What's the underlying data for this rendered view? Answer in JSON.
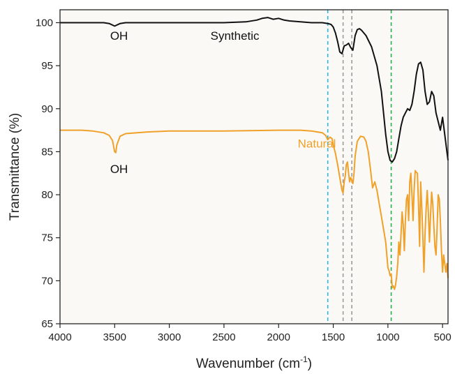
{
  "chart_data": {
    "type": "line",
    "xlabel": "Wavenumber (cm",
    "xlabel_sup": "-1",
    "xlabel_close": ")",
    "ylabel": "Transmittance (%)",
    "xlim": [
      4000,
      450
    ],
    "ylim": [
      65,
      101.5
    ],
    "x_reversed": true,
    "xticks": [
      4000,
      3500,
      3000,
      2500,
      2000,
      1500,
      1000,
      500
    ],
    "yticks": [
      65,
      70,
      75,
      80,
      85,
      90,
      95,
      100
    ],
    "grid": false,
    "background": "#fbf9f6",
    "series": [
      {
        "name": "Synthetic",
        "color": "#111111",
        "x": [
          4000,
          3800,
          3600,
          3550,
          3500,
          3450,
          3400,
          3000,
          2500,
          2300,
          2200,
          2150,
          2100,
          2050,
          2000,
          1950,
          1900,
          1800,
          1700,
          1600,
          1550,
          1520,
          1500,
          1480,
          1460,
          1440,
          1420,
          1400,
          1380,
          1360,
          1340,
          1320,
          1300,
          1280,
          1260,
          1240,
          1200,
          1150,
          1100,
          1060,
          1040,
          1020,
          1000,
          980,
          960,
          940,
          920,
          900,
          880,
          860,
          840,
          820,
          800,
          780,
          760,
          740,
          720,
          700,
          680,
          660,
          640,
          620,
          600,
          580,
          560,
          540,
          520,
          500,
          480,
          460,
          450
        ],
        "y": [
          100.0,
          100.0,
          100.0,
          99.9,
          99.6,
          99.9,
          100.0,
          100.0,
          100.0,
          100.1,
          100.3,
          100.5,
          100.6,
          100.4,
          100.5,
          100.3,
          100.2,
          100.1,
          100.0,
          100.0,
          99.9,
          99.8,
          99.5,
          98.8,
          97.8,
          96.6,
          96.4,
          97.3,
          97.4,
          97.6,
          97.1,
          96.8,
          98.5,
          99.2,
          99.3,
          99.1,
          98.5,
          97.2,
          95.0,
          92.0,
          89.5,
          87.0,
          85.0,
          84.0,
          83.8,
          84.2,
          85.0,
          86.5,
          88.0,
          89.0,
          89.5,
          90.0,
          89.8,
          90.5,
          92.0,
          94.0,
          95.2,
          95.4,
          94.5,
          92.0,
          90.5,
          90.8,
          92.0,
          91.5,
          89.5,
          88.5,
          87.5,
          89.0,
          87.0,
          85.0,
          84.0
        ]
      },
      {
        "name": "Natural",
        "color": "#f0a12a",
        "x": [
          4000,
          3800,
          3700,
          3600,
          3550,
          3520,
          3500,
          3490,
          3480,
          3450,
          3400,
          3200,
          3000,
          2500,
          2000,
          1800,
          1700,
          1600,
          1570,
          1550,
          1530,
          1510,
          1500,
          1480,
          1460,
          1440,
          1420,
          1410,
          1400,
          1390,
          1380,
          1370,
          1360,
          1350,
          1340,
          1320,
          1310,
          1300,
          1280,
          1250,
          1220,
          1200,
          1180,
          1160,
          1140,
          1120,
          1100,
          1080,
          1060,
          1040,
          1020,
          1000,
          990,
          980,
          970,
          960,
          950,
          940,
          930,
          920,
          910,
          900,
          890,
          880,
          870,
          860,
          850,
          840,
          830,
          820,
          810,
          800,
          790,
          780,
          770,
          760,
          750,
          740,
          730,
          720,
          710,
          700,
          690,
          680,
          670,
          660,
          650,
          640,
          630,
          620,
          610,
          600,
          590,
          580,
          570,
          560,
          550,
          540,
          530,
          520,
          510,
          500,
          490,
          480,
          470,
          460,
          450
        ],
        "y": [
          87.5,
          87.5,
          87.4,
          87.2,
          86.9,
          86.3,
          85.0,
          84.9,
          85.8,
          86.8,
          87.1,
          87.3,
          87.4,
          87.4,
          87.5,
          87.5,
          87.4,
          87.2,
          86.9,
          86.4,
          86.7,
          86.5,
          85.8,
          84.8,
          83.5,
          82.0,
          80.5,
          80.2,
          81.5,
          82.2,
          83.5,
          83.8,
          82.5,
          81.5,
          82.0,
          81.3,
          82.5,
          84.5,
          86.2,
          86.8,
          86.7,
          86.2,
          85.0,
          83.0,
          80.8,
          81.5,
          80.5,
          79.0,
          77.5,
          76.0,
          74.5,
          71.5,
          71.2,
          70.6,
          70.8,
          69.2,
          69.4,
          69.0,
          69.5,
          70.5,
          72.0,
          74.5,
          73.0,
          75.5,
          78.0,
          76.5,
          73.5,
          77.0,
          79.5,
          80.0,
          77.0,
          81.5,
          82.5,
          80.0,
          77.0,
          80.5,
          82.8,
          82.6,
          82.5,
          79.0,
          74.0,
          81.5,
          78.5,
          75.0,
          71.0,
          75.5,
          78.5,
          80.5,
          78.0,
          74.5,
          77.5,
          80.3,
          79.0,
          76.5,
          74.0,
          73.0,
          76.0,
          80.0,
          79.5,
          77.0,
          73.5,
          71.0,
          73.0,
          72.0,
          71.0,
          72.0,
          70.3
        ]
      }
    ],
    "annotations": [
      {
        "text": "OH",
        "x": 3460,
        "y": 98.0,
        "color": "#111111"
      },
      {
        "text": "Synthetic",
        "x": 2400,
        "y": 98.0,
        "color": "#111111"
      },
      {
        "text": "OH",
        "x": 3460,
        "y": 82.5,
        "color": "#111111"
      },
      {
        "text": "Natural",
        "x": 1650,
        "y": 85.5,
        "color": "#f0a12a"
      }
    ],
    "reference_lines": [
      {
        "x": 1550,
        "color": "#2bb6e8",
        "style": "dashed"
      },
      {
        "x": 1410,
        "color": "#9a9a9a",
        "style": "dashed"
      },
      {
        "x": 1330,
        "color": "#9a9a9a",
        "style": "dashed"
      },
      {
        "x": 970,
        "color": "#1fb14a",
        "style": "dashed"
      }
    ]
  }
}
